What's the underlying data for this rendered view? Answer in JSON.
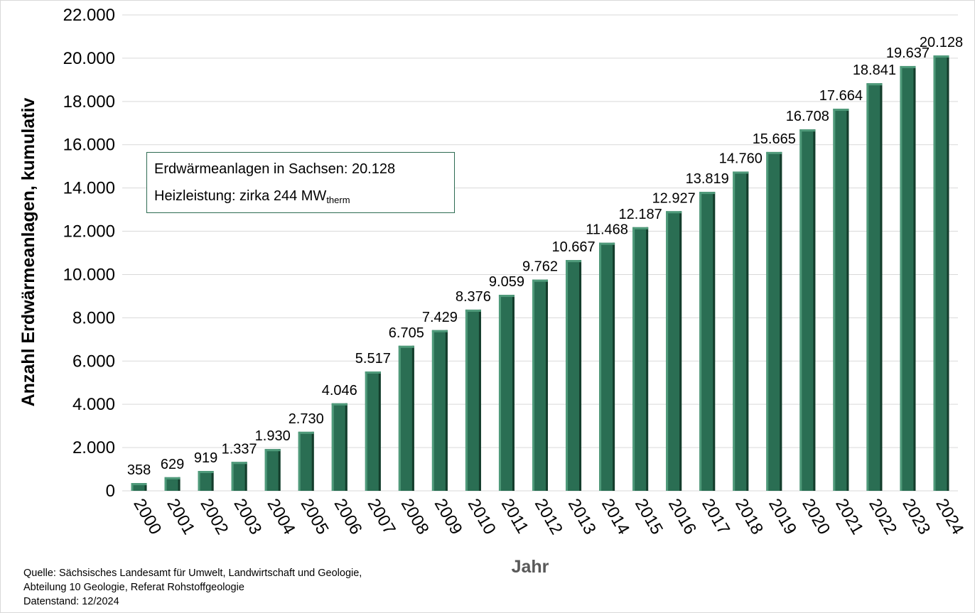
{
  "chart_data": {
    "type": "bar",
    "categories": [
      "2000",
      "2001",
      "2002",
      "2003",
      "2004",
      "2005",
      "2006",
      "2007",
      "2008",
      "2009",
      "2010",
      "2011",
      "2012",
      "2013",
      "2014",
      "2015",
      "2016",
      "2017",
      "2018",
      "2019",
      "2020",
      "2021",
      "2022",
      "2023",
      "2024"
    ],
    "values": [
      358,
      629,
      919,
      1337,
      1930,
      2730,
      4046,
      5517,
      6705,
      7429,
      8376,
      9059,
      9762,
      10667,
      11468,
      12187,
      12927,
      13819,
      14760,
      15665,
      16708,
      17664,
      18841,
      19637,
      20128
    ],
    "value_labels": [
      "358",
      "629",
      "919",
      "1.337",
      "1.930",
      "2.730",
      "4.046",
      "5.517",
      "6.705",
      "7.429",
      "8.376",
      "9.059",
      "9.762",
      "10.667",
      "11.468",
      "12.187",
      "12.927",
      "13.819",
      "14.760",
      "15.665",
      "16.708",
      "17.664",
      "18.841",
      "19.637",
      "20.128"
    ],
    "ylim": [
      0,
      22000
    ],
    "yticks": [
      0,
      2000,
      4000,
      6000,
      8000,
      10000,
      12000,
      14000,
      16000,
      18000,
      20000,
      22000
    ],
    "ytick_labels": [
      "0",
      "2.000",
      "4.000",
      "6.000",
      "8.000",
      "10.000",
      "12.000",
      "14.000",
      "16.000",
      "18.000",
      "20.000",
      "22.000"
    ],
    "xlabel": "Jahr",
    "ylabel": "Anzahl Erdwärmeanlagen, kumulativ",
    "grid": true,
    "legend": "none",
    "colors": {
      "bar": "#2a6e53",
      "bar_light": "#4f9a7a",
      "bar_dark": "#143d2c",
      "grid": "#d9d9d9",
      "xlabel": "#595959"
    }
  },
  "info_box": {
    "line1": "Erdwärmeanlagen in Sachsen: 20.128",
    "line2_main": "Heizleistung: zirka 244 MW",
    "line2_sub": "therm"
  },
  "source": {
    "line1": "Quelle: Sächsisches Landesamt für Umwelt, Landwirtschaft und Geologie,",
    "line2": "Abteilung 10 Geologie, Referat Rohstoffgeologie",
    "line3": "Datenstand: 12/2024"
  }
}
